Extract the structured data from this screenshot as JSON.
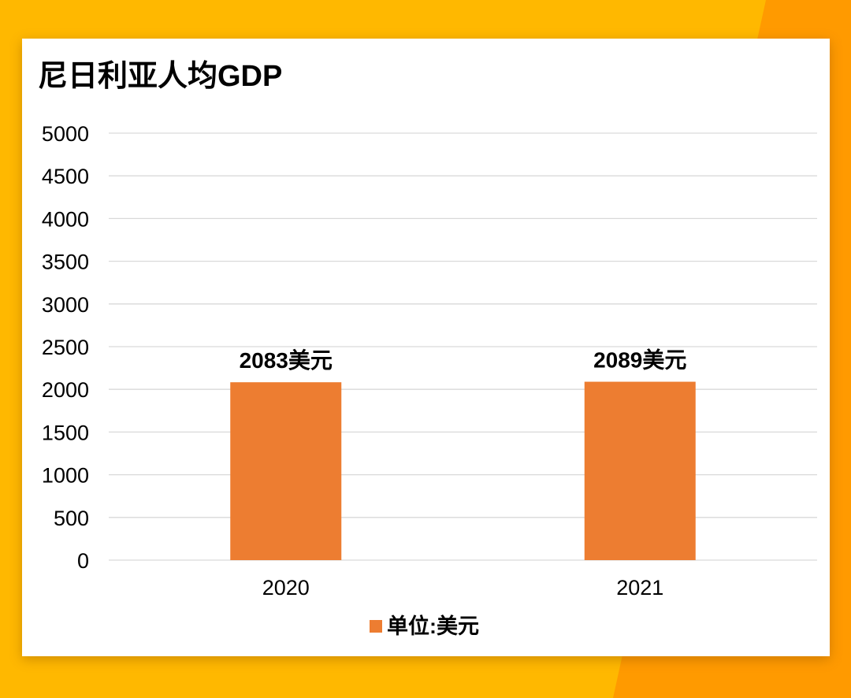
{
  "colors": {
    "background": "#FFB800",
    "accent_shape": "#FF9A00",
    "bar": "#ED7D31",
    "gridline": "#D9D9D9"
  },
  "chart_data": {
    "type": "bar",
    "title": "尼日利亚人均GDP",
    "categories": [
      "2020",
      "2021"
    ],
    "series": [
      {
        "name": "单位:美元",
        "values": [
          2083,
          2089
        ]
      }
    ],
    "data_labels": [
      "2083美元",
      "2089美元"
    ],
    "ylim": [
      0,
      5000
    ],
    "yticks": [
      "0",
      "500",
      "1000",
      "1500",
      "2000",
      "2500",
      "3000",
      "3500",
      "4000",
      "4500",
      "5000"
    ],
    "grid": true,
    "legend": "bottom"
  }
}
